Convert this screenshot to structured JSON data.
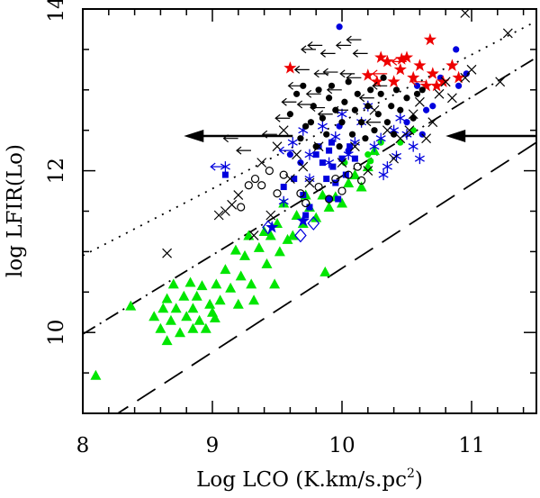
{
  "chart_data": {
    "type": "scatter",
    "title": "",
    "xlabel": "Log LCO (K.km/s.pc",
    "xlabel_sup": "2",
    "xlabel_tail": ")",
    "ylabel": "log LFIR(Lo)",
    "xlim": [
      8.0,
      11.5
    ],
    "ylim": [
      9.0,
      14.0
    ],
    "xticks": [
      {
        "value": 8,
        "label": "8"
      },
      {
        "value": 9,
        "label": "9"
      },
      {
        "value": 10,
        "label": "10"
      },
      {
        "value": 11,
        "label": "11"
      }
    ],
    "yticks": [
      {
        "value": 10,
        "label": "10"
      },
      {
        "value": 12,
        "label": "12"
      },
      {
        "value": 14,
        "label": "14"
      }
    ],
    "colors": {
      "green": "#00e600",
      "blue": "#0000dd",
      "red": "#ee0000",
      "black": "#000000"
    },
    "lines": [
      {
        "name": "dotted-line",
        "style": "dotted",
        "from": [
          8.0,
          10.95
        ],
        "to": [
          11.5,
          13.85
        ]
      },
      {
        "name": "dashdot-line",
        "style": "dashdot",
        "from": [
          8.0,
          9.98
        ],
        "to": [
          11.5,
          13.4
        ]
      },
      {
        "name": "dashed-line",
        "style": "dashed",
        "from": [
          8.0,
          8.72
        ],
        "to": [
          11.5,
          12.35
        ]
      }
    ],
    "big_arrows": [
      {
        "name": "left-arrow",
        "from": [
          9.62,
          12.43
        ],
        "to": [
          8.78,
          12.43
        ]
      },
      {
        "name": "right-arrow",
        "from": [
          11.5,
          12.43
        ],
        "to": [
          10.8,
          12.43
        ]
      }
    ],
    "series": [
      {
        "name": "green triangles",
        "marker": "triangle",
        "color": "green",
        "points": [
          [
            8.1,
            9.47
          ],
          [
            8.37,
            10.33
          ],
          [
            8.55,
            10.2
          ],
          [
            8.6,
            10.05
          ],
          [
            8.62,
            10.3
          ],
          [
            8.65,
            10.42
          ],
          [
            8.68,
            10.15
          ],
          [
            8.7,
            10.6
          ],
          [
            8.72,
            10.3
          ],
          [
            8.75,
            10.0
          ],
          [
            8.78,
            10.45
          ],
          [
            8.8,
            10.2
          ],
          [
            8.83,
            10.62
          ],
          [
            8.85,
            10.3
          ],
          [
            8.88,
            10.45
          ],
          [
            8.9,
            10.15
          ],
          [
            8.92,
            10.58
          ],
          [
            8.95,
            10.05
          ],
          [
            8.98,
            10.35
          ],
          [
            9.0,
            10.25
          ],
          [
            9.03,
            10.6
          ],
          [
            9.06,
            10.4
          ],
          [
            9.1,
            10.78
          ],
          [
            9.14,
            10.55
          ],
          [
            9.18,
            11.02
          ],
          [
            9.2,
            10.35
          ],
          [
            9.22,
            10.7
          ],
          [
            9.25,
            10.95
          ],
          [
            9.28,
            11.2
          ],
          [
            9.3,
            10.6
          ],
          [
            9.32,
            10.4
          ],
          [
            9.36,
            11.05
          ],
          [
            9.4,
            11.25
          ],
          [
            9.42,
            10.85
          ],
          [
            9.45,
            11.2
          ],
          [
            9.5,
            11.35
          ],
          [
            9.52,
            11.0
          ],
          [
            9.55,
            11.6
          ],
          [
            9.58,
            11.15
          ],
          [
            9.62,
            11.2
          ],
          [
            9.65,
            11.45
          ],
          [
            9.7,
            11.35
          ],
          [
            9.72,
            11.7
          ],
          [
            9.75,
            11.55
          ],
          [
            9.8,
            11.42
          ],
          [
            9.85,
            11.7
          ],
          [
            9.9,
            11.55
          ],
          [
            9.95,
            11.68
          ],
          [
            10.0,
            11.6
          ],
          [
            10.05,
            11.85
          ],
          [
            10.1,
            11.95
          ],
          [
            10.2,
            12.05
          ],
          [
            10.25,
            12.25
          ],
          [
            10.15,
            11.8
          ],
          [
            9.87,
            10.75
          ],
          [
            9.48,
            10.6
          ],
          [
            8.85,
            10.05
          ],
          [
            9.02,
            10.18
          ],
          [
            8.65,
            9.9
          ]
        ]
      },
      {
        "name": "green circles",
        "marker": "dot",
        "color": "green",
        "points": [
          [
            10.2,
            12.2
          ],
          [
            10.3,
            12.35
          ],
          [
            10.45,
            12.35
          ],
          [
            10.55,
            12.5
          ],
          [
            10.02,
            12.1
          ],
          [
            10.22,
            12.12
          ]
        ]
      },
      {
        "name": "blue squares",
        "marker": "square",
        "color": "blue",
        "points": [
          [
            9.1,
            11.95
          ],
          [
            9.55,
            11.8
          ],
          [
            9.63,
            11.9
          ],
          [
            9.7,
            11.7
          ],
          [
            9.75,
            11.55
          ],
          [
            9.8,
            12.2
          ],
          [
            9.85,
            12.1
          ],
          [
            9.88,
            11.9
          ],
          [
            9.9,
            12.25
          ],
          [
            9.93,
            12.05
          ],
          [
            9.95,
            11.85
          ],
          [
            9.97,
            11.65
          ],
          [
            10.0,
            12.15
          ],
          [
            10.03,
            11.95
          ],
          [
            10.06,
            12.3
          ],
          [
            10.1,
            12.15
          ],
          [
            9.72,
            11.45
          ],
          [
            9.82,
            12.3
          ],
          [
            9.92,
            12.35
          ]
        ]
      },
      {
        "name": "blue dots",
        "marker": "dot",
        "color": "blue",
        "points": [
          [
            9.98,
            13.78
          ],
          [
            10.58,
            13.05
          ],
          [
            10.62,
            12.45
          ],
          [
            10.65,
            12.75
          ],
          [
            10.9,
            13.05
          ],
          [
            10.96,
            13.2
          ],
          [
            10.88,
            13.5
          ],
          [
            10.76,
            13.15
          ],
          [
            10.7,
            12.8
          ],
          [
            10.5,
            12.6
          ],
          [
            9.98,
            12.55
          ],
          [
            9.6,
            12.2
          ],
          [
            9.9,
            11.65
          ],
          [
            10.05,
            12.25
          ],
          [
            9.68,
            12.1
          ]
        ]
      },
      {
        "name": "blue asterisks",
        "marker": "asterisk",
        "color": "blue",
        "points": [
          [
            9.62,
            12.35
          ],
          [
            9.7,
            12.5
          ],
          [
            9.75,
            12.2
          ],
          [
            9.85,
            12.55
          ],
          [
            9.9,
            12.1
          ],
          [
            9.95,
            12.42
          ],
          [
            10.0,
            12.7
          ],
          [
            10.05,
            12.2
          ],
          [
            10.1,
            12.35
          ],
          [
            10.15,
            12.6
          ],
          [
            10.2,
            12.8
          ],
          [
            10.25,
            12.3
          ],
          [
            10.3,
            12.4
          ],
          [
            10.35,
            12.05
          ],
          [
            10.4,
            12.5
          ],
          [
            10.45,
            12.65
          ],
          [
            10.5,
            12.45
          ],
          [
            10.55,
            12.3
          ],
          [
            10.42,
            12.18
          ],
          [
            10.32,
            11.95
          ],
          [
            9.1,
            12.05
          ],
          [
            9.75,
            11.9
          ],
          [
            10.6,
            12.15
          ],
          [
            9.55,
            11.62
          ]
        ]
      },
      {
        "name": "blue stars",
        "marker": "star",
        "color": "blue",
        "points": [
          [
            9.46,
            11.3
          ],
          [
            9.7,
            11.38
          ]
        ]
      },
      {
        "name": "blue diamonds",
        "marker": "diamond",
        "color": "blue",
        "points": [
          [
            9.43,
            11.3
          ],
          [
            9.68,
            11.2
          ],
          [
            9.78,
            11.35
          ]
        ]
      },
      {
        "name": "red stars",
        "marker": "star",
        "color": "red",
        "points": [
          [
            9.6,
            13.27
          ],
          [
            10.2,
            13.18
          ],
          [
            10.27,
            13.1
          ],
          [
            10.3,
            13.4
          ],
          [
            10.35,
            13.35
          ],
          [
            10.4,
            13.1
          ],
          [
            10.45,
            13.25
          ],
          [
            10.5,
            13.4
          ],
          [
            10.55,
            13.15
          ],
          [
            10.6,
            13.3
          ],
          [
            10.65,
            13.05
          ],
          [
            10.7,
            13.2
          ],
          [
            10.73,
            13.05
          ],
          [
            10.68,
            13.62
          ],
          [
            10.78,
            13.1
          ],
          [
            10.85,
            13.3
          ],
          [
            10.9,
            13.15
          ],
          [
            10.46,
            13.38
          ]
        ]
      },
      {
        "name": "black dots",
        "marker": "dot",
        "color": "black",
        "points": [
          [
            9.6,
            12.7
          ],
          [
            9.65,
            12.95
          ],
          [
            9.7,
            13.05
          ],
          [
            9.72,
            12.55
          ],
          [
            9.78,
            12.8
          ],
          [
            9.8,
            12.3
          ],
          [
            9.82,
            13.0
          ],
          [
            9.85,
            12.65
          ],
          [
            9.88,
            12.45
          ],
          [
            9.9,
            12.9
          ],
          [
            9.92,
            13.05
          ],
          [
            9.95,
            12.75
          ],
          [
            9.98,
            12.3
          ],
          [
            10.0,
            12.6
          ],
          [
            10.02,
            12.85
          ],
          [
            10.05,
            13.1
          ],
          [
            10.08,
            12.45
          ],
          [
            10.1,
            12.75
          ],
          [
            10.12,
            12.95
          ],
          [
            10.15,
            12.6
          ],
          [
            10.18,
            12.4
          ],
          [
            10.2,
            12.8
          ],
          [
            10.22,
            13.0
          ],
          [
            10.25,
            12.5
          ],
          [
            10.28,
            12.7
          ],
          [
            10.3,
            12.95
          ],
          [
            10.32,
            13.15
          ],
          [
            10.35,
            12.6
          ],
          [
            10.38,
            12.8
          ],
          [
            10.4,
            12.45
          ],
          [
            10.42,
            13.0
          ],
          [
            10.45,
            12.75
          ],
          [
            10.5,
            12.9
          ],
          [
            10.55,
            12.65
          ],
          [
            10.58,
            12.95
          ],
          [
            9.68,
            12.4
          ],
          [
            10.62,
            13.0
          ],
          [
            9.76,
            12.6
          ]
        ]
      },
      {
        "name": "black open circles",
        "marker": "circle",
        "color": "black",
        "points": [
          [
            9.28,
            11.82
          ],
          [
            9.33,
            11.9
          ],
          [
            9.38,
            11.82
          ],
          [
            9.44,
            12.0
          ],
          [
            9.5,
            11.72
          ],
          [
            9.55,
            11.95
          ],
          [
            9.68,
            11.72
          ],
          [
            9.72,
            11.6
          ],
          [
            9.82,
            11.8
          ],
          [
            9.9,
            11.65
          ],
          [
            9.95,
            11.9
          ],
          [
            10.0,
            11.75
          ],
          [
            10.05,
            11.95
          ],
          [
            10.12,
            12.05
          ],
          [
            9.22,
            11.55
          ],
          [
            10.15,
            11.88
          ]
        ]
      },
      {
        "name": "black crosses",
        "marker": "cross",
        "color": "black",
        "points": [
          [
            8.65,
            10.98
          ],
          [
            9.05,
            11.45
          ],
          [
            9.1,
            11.5
          ],
          [
            9.15,
            11.58
          ],
          [
            9.2,
            11.7
          ],
          [
            9.32,
            11.2
          ],
          [
            9.38,
            12.1
          ],
          [
            9.5,
            12.3
          ],
          [
            9.55,
            12.5
          ],
          [
            9.6,
            11.9
          ],
          [
            9.45,
            11.45
          ],
          [
            9.75,
            11.85
          ],
          [
            9.82,
            12.3
          ],
          [
            9.7,
            12.05
          ],
          [
            10.0,
            12.1
          ],
          [
            10.1,
            12.3
          ],
          [
            10.2,
            12.0
          ],
          [
            10.35,
            12.5
          ],
          [
            10.4,
            12.15
          ],
          [
            10.45,
            12.4
          ],
          [
            10.52,
            12.5
          ],
          [
            10.55,
            12.7
          ],
          [
            10.6,
            12.85
          ],
          [
            10.65,
            12.4
          ],
          [
            10.7,
            12.6
          ],
          [
            10.75,
            12.95
          ],
          [
            10.8,
            13.1
          ],
          [
            10.85,
            12.9
          ],
          [
            10.95,
            13.15
          ],
          [
            11.0,
            13.25
          ],
          [
            10.95,
            13.95
          ],
          [
            11.22,
            13.1
          ],
          [
            11.28,
            13.7
          ],
          [
            10.25,
            12.75
          ],
          [
            9.65,
            12.2
          ]
        ]
      },
      {
        "name": "black left-arrow upper limits",
        "marker": "larrow",
        "color": "black",
        "points": [
          [
            9.45,
            12.45
          ],
          [
            9.55,
            12.65
          ],
          [
            9.6,
            12.85
          ],
          [
            9.65,
            13.05
          ],
          [
            9.7,
            13.25
          ],
          [
            9.75,
            13.5
          ],
          [
            9.8,
            13.55
          ],
          [
            9.85,
            13.2
          ],
          [
            9.9,
            13.45
          ],
          [
            9.95,
            13.0
          ],
          [
            10.0,
            12.75
          ],
          [
            10.05,
            13.2
          ],
          [
            10.1,
            13.15
          ],
          [
            10.15,
            13.45
          ],
          [
            10.2,
            12.9
          ],
          [
            10.25,
            12.6
          ],
          [
            10.3,
            13.05
          ],
          [
            9.15,
            12.4
          ],
          [
            9.25,
            12.25
          ],
          [
            9.82,
            12.78
          ],
          [
            9.88,
            12.7
          ],
          [
            9.72,
            12.82
          ],
          [
            9.79,
            12.95
          ],
          [
            9.92,
            13.22
          ],
          [
            10.02,
            13.55
          ],
          [
            10.1,
            13.62
          ]
        ]
      },
      {
        "name": "red left-arrow upper limits",
        "marker": "larrow",
        "color": "red",
        "points": [
          [
            10.3,
            13.2
          ],
          [
            10.45,
            13.35
          ],
          [
            10.6,
            13.1
          ]
        ]
      },
      {
        "name": "blue left-arrow upper limits",
        "marker": "larrow",
        "color": "blue",
        "points": [
          [
            9.05,
            12.05
          ],
          [
            9.58,
            12.25
          ]
        ]
      }
    ]
  }
}
